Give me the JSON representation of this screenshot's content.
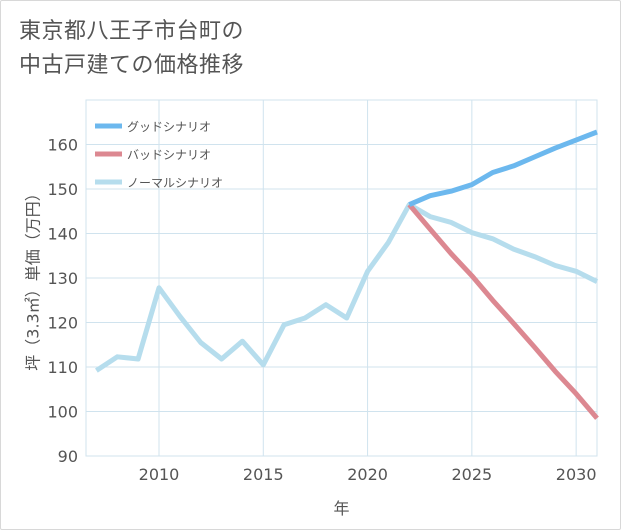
{
  "title_lines": [
    "東京都八王子市台町の",
    "中古戸建ての価格推移"
  ],
  "chart_data": {
    "type": "line",
    "xlabel": "年",
    "ylabel": "坪（3.3㎡）単価（万円）",
    "xlim": [
      2006.5,
      2031
    ],
    "ylim": [
      90,
      170
    ],
    "x_ticks": [
      2010,
      2015,
      2020,
      2025,
      2030
    ],
    "y_ticks": [
      90,
      100,
      110,
      120,
      130,
      140,
      150,
      160
    ],
    "grid": true,
    "legend_position": "top-left",
    "series": [
      {
        "name": "グッドシナリオ",
        "color": "#6cb8ee",
        "x": [
          2022,
          2023,
          2024,
          2025,
          2026,
          2027,
          2028,
          2029,
          2030,
          2031
        ],
        "y": [
          146.5,
          148.5,
          149.5,
          151,
          153.7,
          155.2,
          157.2,
          159.2,
          161,
          162.8
        ]
      },
      {
        "name": "バッドシナリオ",
        "color": "#dc8891",
        "x": [
          2022,
          2023,
          2024,
          2025,
          2026,
          2027,
          2028,
          2029,
          2030,
          2031
        ],
        "y": [
          146.5,
          141,
          135.5,
          130.5,
          125,
          119.8,
          114.5,
          109,
          104,
          98.5
        ]
      },
      {
        "name": "ノーマルシナリオ",
        "color": "#b6dded",
        "x": [
          2007,
          2008,
          2009,
          2010,
          2011,
          2012,
          2013,
          2014,
          2015,
          2016,
          2017,
          2018,
          2019,
          2020,
          2021,
          2022,
          2023,
          2024,
          2025,
          2026,
          2027,
          2028,
          2029,
          2030,
          2031
        ],
        "y": [
          109.2,
          112.3,
          111.8,
          127.8,
          121.4,
          115.5,
          111.8,
          115.8,
          110.5,
          119.5,
          121,
          124,
          121,
          131.5,
          138,
          146.5,
          143.8,
          142.5,
          140.2,
          138.8,
          136.5,
          134.8,
          132.8,
          131.5,
          129.2
        ]
      }
    ]
  }
}
